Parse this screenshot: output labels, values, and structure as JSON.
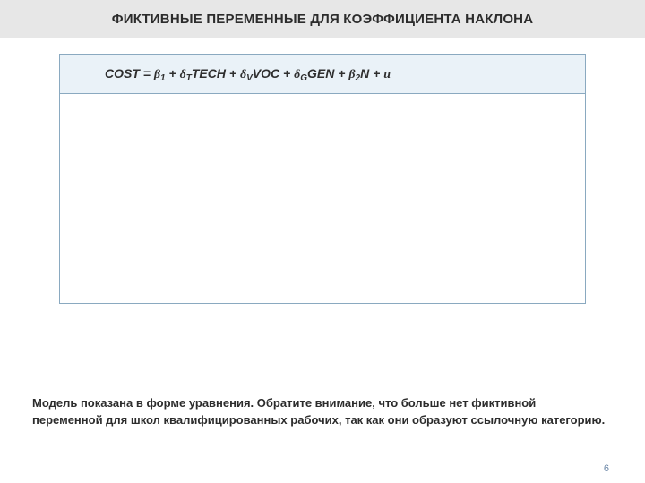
{
  "title": "ФИКТИВНЫЕ ПЕРЕМЕННЫЕ ДЛЯ КОЭФФИЦИЕНТА НАКЛОНА",
  "equation": {
    "lhs": "COST",
    "eq": "  =  ",
    "terms": [
      {
        "sym": "β",
        "sub": "1",
        "after": " + "
      },
      {
        "sym": "δ",
        "sub": "T",
        "var": "TECH",
        "after": " + "
      },
      {
        "sym": "δ",
        "sub": "V",
        "var": "VOC",
        "after": " + "
      },
      {
        "sym": "δ",
        "sub": "G",
        "var": "GEN",
        "after": " + "
      },
      {
        "sym": "β",
        "sub": "2",
        "var": "N",
        "after": "  +  "
      },
      {
        "sym": "u",
        "sub": "",
        "after": ""
      }
    ]
  },
  "caption": "Модель показана в форме уравнения. Обратите внимание, что больше нет фиктивной переменной для школ квалифицированных рабочих, так как они образуют ссылочную категорию.",
  "page_number": "6",
  "colors": {
    "title_bg": "#e7e7e7",
    "box_border": "#8aa9c0",
    "eq_bg": "#eaf2f8",
    "text": "#2c2c2c",
    "pagenum": "#6a86a6"
  }
}
